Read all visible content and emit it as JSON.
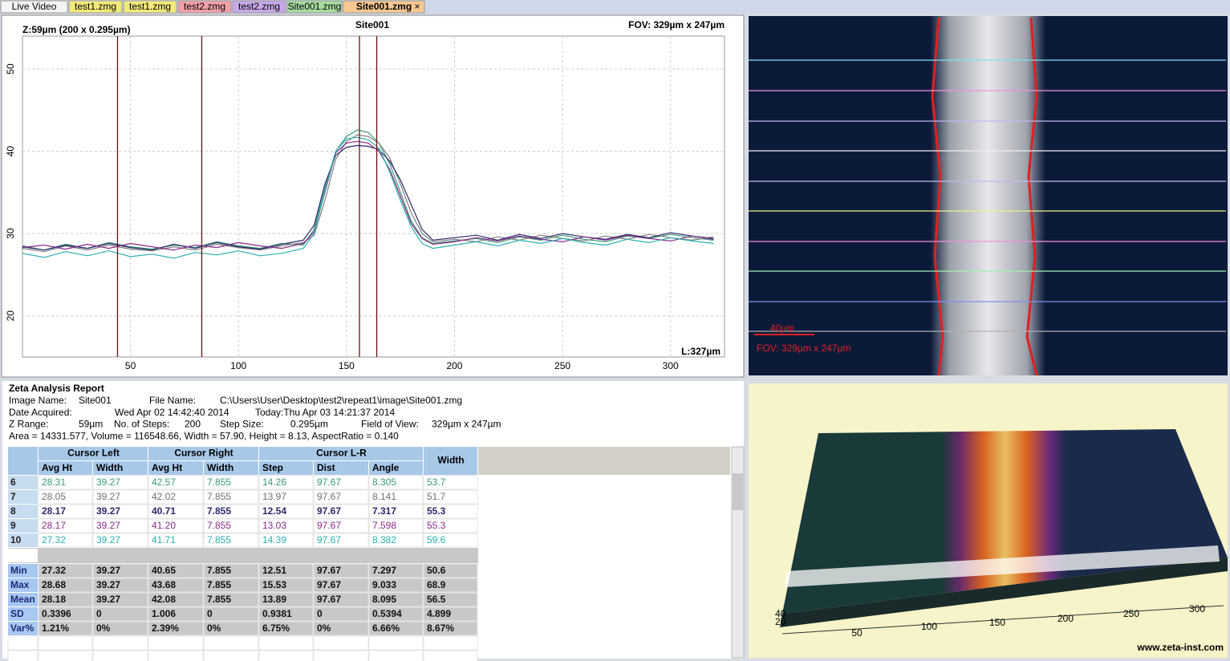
{
  "tabs": [
    {
      "label": "Live Video",
      "color": "#f4f4f4"
    },
    {
      "label": "test1.zmg",
      "color": "#f3ea7a"
    },
    {
      "label": "test1.zmg",
      "color": "#f3ea7a"
    },
    {
      "label": "test2.zmg",
      "color": "#f2a0a8"
    },
    {
      "label": "test2.zmg",
      "color": "#c8a8e8"
    },
    {
      "label": "Site001.zmg",
      "color": "#a8dca0"
    },
    {
      "label": "Site001.zmg",
      "color": "#f8c890"
    }
  ],
  "plot": {
    "z_label": "Z:59µm (200 x 0.295µm)",
    "title": "Site001",
    "fov": "FOV: 329µm x 247µm",
    "length": "L:327µm",
    "xlim": [
      0,
      325
    ],
    "ylim": [
      15,
      54
    ],
    "xticks": [
      50,
      100,
      150,
      200,
      250,
      300
    ],
    "yticks": [
      20,
      30,
      40,
      50
    ],
    "grid": true,
    "cursors": [
      44,
      83,
      156,
      164
    ],
    "x": [
      0,
      10,
      20,
      30,
      40,
      50,
      60,
      70,
      80,
      90,
      100,
      110,
      120,
      130,
      135,
      140,
      145,
      150,
      155,
      160,
      165,
      170,
      175,
      180,
      185,
      190,
      200,
      210,
      220,
      230,
      240,
      250,
      260,
      270,
      280,
      290,
      300,
      310,
      320
    ],
    "series": [
      {
        "name": "6",
        "color": "#3a9a7a",
        "values": [
          28.5,
          28.0,
          28.7,
          28.2,
          28.9,
          28.4,
          28.1,
          28.6,
          28.3,
          29.0,
          28.5,
          28.2,
          28.8,
          28.6,
          30.5,
          35.5,
          40.0,
          41.8,
          42.6,
          42.3,
          41.0,
          38.5,
          35.0,
          31.5,
          29.5,
          28.8,
          29.1,
          29.4,
          28.9,
          29.6,
          29.2,
          29.8,
          29.3,
          29.0,
          29.7,
          29.4,
          29.9,
          29.5,
          29.2
        ]
      },
      {
        "name": "7",
        "color": "#808080",
        "values": [
          28.2,
          27.8,
          28.5,
          28.0,
          28.6,
          28.1,
          27.9,
          28.4,
          28.0,
          28.7,
          28.3,
          28.0,
          28.5,
          28.9,
          29.8,
          34.0,
          39.0,
          41.2,
          42.0,
          41.8,
          41.0,
          39.2,
          36.0,
          32.5,
          30.0,
          29.0,
          29.3,
          29.0,
          29.6,
          29.2,
          29.8,
          29.4,
          29.1,
          29.7,
          29.3,
          29.9,
          29.5,
          29.2,
          29.6
        ]
      },
      {
        "name": "8",
        "color": "#2a2a6a",
        "values": [
          28.4,
          28.0,
          28.6,
          28.2,
          28.8,
          28.3,
          28.0,
          28.7,
          28.2,
          28.9,
          28.4,
          28.1,
          28.7,
          29.2,
          31.0,
          36.0,
          39.5,
          40.5,
          40.7,
          40.6,
          40.2,
          38.8,
          36.5,
          33.5,
          30.5,
          29.2,
          29.5,
          29.8,
          29.2,
          29.9,
          29.4,
          30.0,
          29.6,
          29.3,
          29.9,
          29.5,
          30.1,
          29.7,
          29.4
        ]
      },
      {
        "name": "9",
        "color": "#8a2a8a",
        "values": [
          28.3,
          28.6,
          28.1,
          28.7,
          28.2,
          28.8,
          28.4,
          28.0,
          28.6,
          28.3,
          28.9,
          28.5,
          28.2,
          28.8,
          30.2,
          35.0,
          39.8,
          41.0,
          41.2,
          41.0,
          40.0,
          37.8,
          34.5,
          31.2,
          29.4,
          28.7,
          29.0,
          29.5,
          29.1,
          29.7,
          29.3,
          29.0,
          29.6,
          29.2,
          29.8,
          29.4,
          29.1,
          29.7,
          29.3
        ]
      },
      {
        "name": "10",
        "color": "#2ab0b0",
        "values": [
          27.6,
          27.1,
          27.8,
          27.3,
          27.9,
          27.2,
          27.5,
          27.0,
          27.7,
          27.4,
          27.9,
          27.3,
          27.6,
          28.2,
          30.0,
          35.2,
          40.0,
          41.5,
          41.7,
          41.4,
          40.4,
          37.5,
          34.0,
          30.8,
          28.8,
          28.2,
          28.6,
          29.0,
          28.5,
          29.2,
          28.8,
          29.4,
          28.9,
          28.6,
          29.3,
          28.9,
          29.5,
          29.1,
          28.8
        ]
      }
    ]
  },
  "image": {
    "scale": "40µm",
    "fov": "FOV: 329µm x 247µm"
  },
  "report": {
    "title": "Zeta Analysis Report",
    "lines": [
      [
        "Image Name:",
        "Site001",
        "File Name:",
        "C:\\Users\\User\\Desktop\\test2\\repeat1\\image\\Site001.zmg"
      ],
      [
        "Date Acquired:",
        "Wed Apr 02 14:42:40 2014",
        "Today:Thu Apr 03 14:21:37 2014"
      ],
      [
        "Z Range:",
        "59µm",
        "No. of Steps:",
        "200",
        "Step Size:",
        "0.295µm",
        "Field of View:",
        "329µm x 247µm"
      ],
      [
        "Area = 14331.577, Volume = 116548.66, Width = 57.90, Height = 8.13, AspectRatio = 0.140"
      ]
    ]
  },
  "table": {
    "groups": [
      "Cursor Left",
      "Cursor Right",
      "Cursor L-R",
      "Width"
    ],
    "columns": [
      "Avg Ht",
      "Width",
      "Avg Ht",
      "Width",
      "Step",
      "Dist",
      "Angle"
    ],
    "rows": [
      {
        "label": "6",
        "color": "#3a9a7a",
        "cells": [
          "28.31",
          "39.27",
          "42.57",
          "7.855",
          "14.26",
          "97.67",
          "8.305",
          "53.7"
        ]
      },
      {
        "label": "7",
        "color": "#707070",
        "cells": [
          "28.05",
          "39.27",
          "42.02",
          "7.855",
          "13.97",
          "97.67",
          "8.141",
          "51.7"
        ]
      },
      {
        "label": "8",
        "color": "#2a2a6a",
        "cells": [
          "28.17",
          "39.27",
          "40.71",
          "7.855",
          "12.54",
          "97.67",
          "7.317",
          "55.3"
        ]
      },
      {
        "label": "9",
        "color": "#8a2a8a",
        "cells": [
          "28.17",
          "39.27",
          "41.20",
          "7.855",
          "13.03",
          "97.67",
          "7.598",
          "55.3"
        ]
      },
      {
        "label": "10",
        "color": "#2ab0b0",
        "cells": [
          "27.32",
          "39.27",
          "41.71",
          "7.855",
          "14.39",
          "97.67",
          "8.382",
          "59.6"
        ]
      }
    ],
    "stats": [
      {
        "label": "Min",
        "cells": [
          "27.32",
          "39.27",
          "40.65",
          "7.855",
          "12.51",
          "97.67",
          "7.297",
          "50.6"
        ]
      },
      {
        "label": "Max",
        "cells": [
          "28.68",
          "39.27",
          "43.68",
          "7.855",
          "15.53",
          "97.67",
          "9.033",
          "68.9"
        ]
      },
      {
        "label": "Mean",
        "cells": [
          "28.18",
          "39.27",
          "42.08",
          "7.855",
          "13.89",
          "97.67",
          "8.095",
          "56.5"
        ]
      },
      {
        "label": "SD",
        "cells": [
          "0.3396",
          "0",
          "1.006",
          "0",
          "0.9381",
          "0",
          "0.5394",
          "4.899"
        ]
      },
      {
        "label": "Var%",
        "cells": [
          "1.21%",
          "0%",
          "2.39%",
          "0%",
          "6.75%",
          "0%",
          "6.66%",
          "8.67%"
        ]
      }
    ]
  },
  "view3d": {
    "x_labels": [
      "50",
      "100",
      "150",
      "200",
      "250",
      "300"
    ],
    "y_labels": [
      "40",
      "20"
    ],
    "credit": "www.zeta-inst.com"
  }
}
